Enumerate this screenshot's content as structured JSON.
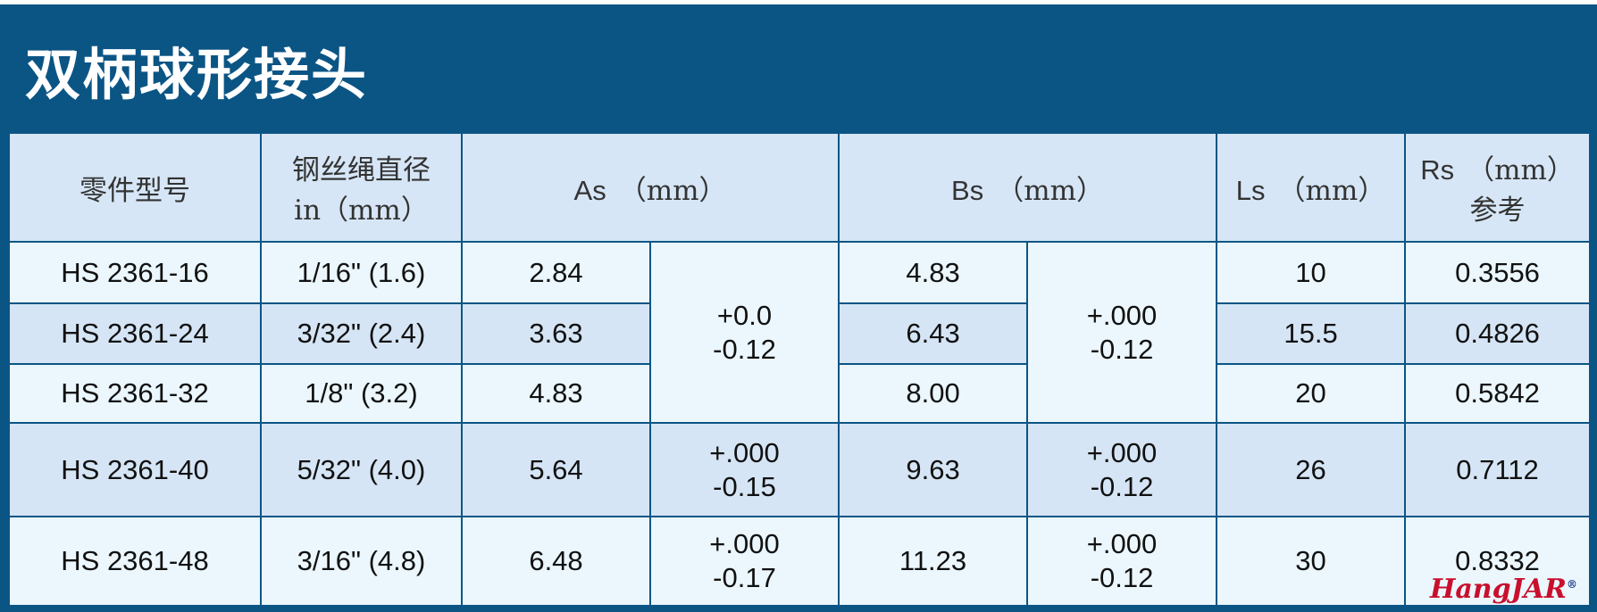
{
  "title": "双柄球形接头",
  "table": {
    "header": [
      {
        "name": "零件型号"
      },
      {
        "name": "钢丝绳直径",
        "unit": "in（mm）"
      },
      {
        "name": "As",
        "unit": "（mm）"
      },
      {
        "name": "Bs",
        "unit": "（mm）"
      },
      {
        "name": "Ls",
        "unit": "（mm）"
      },
      {
        "name": "Rs",
        "unit": "（mm）",
        "note": "参考"
      }
    ],
    "rows": [
      {
        "part": "HS 2361-16",
        "diameter": "1/16\" (1.6)",
        "as": "2.84",
        "as_tol": [
          "+0.0",
          "-0.12"
        ],
        "bs": "4.83",
        "bs_tol": [
          "+.000",
          "-0.12"
        ],
        "ls": "10",
        "rs": "0.3556"
      },
      {
        "part": "HS 2361-24",
        "diameter": "3/32\" (2.4)",
        "as": "3.63",
        "bs": "6.43",
        "ls": "15.5",
        "rs": "0.4826"
      },
      {
        "part": "HS 2361-32",
        "diameter": "1/8\" (3.2)",
        "as": "4.83",
        "bs": "8.00",
        "ls": "20",
        "rs": "0.5842"
      },
      {
        "part": "HS 2361-40",
        "diameter": "5/32\" (4.0)",
        "as": "5.64",
        "as_tol": [
          "+.000",
          "-0.15"
        ],
        "bs": "9.63",
        "bs_tol": [
          "+.000",
          "-0.12"
        ],
        "ls": "26",
        "rs": "0.7112"
      },
      {
        "part": "HS 2361-48",
        "diameter": "3/16\" (4.8)",
        "as": "6.48",
        "as_tol": [
          "+.000",
          "-0.17"
        ],
        "bs": "11.23",
        "bs_tol": [
          "+.000",
          "-0.12"
        ],
        "ls": "30",
        "rs": "0.8332"
      }
    ]
  },
  "logo": "HangJAR",
  "logo_mark": "®"
}
